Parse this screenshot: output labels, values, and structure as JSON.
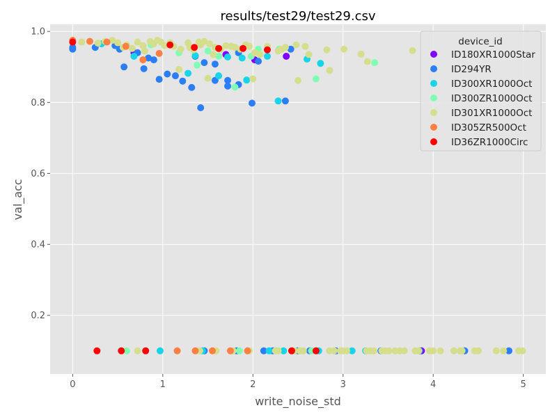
{
  "chart_data": {
    "type": "scatter",
    "title": "results/test29/test29.csv",
    "xlabel": "write_noise_std",
    "ylabel": "val_acc",
    "xlim": [
      -0.25,
      5.25
    ],
    "ylim": [
      0.035,
      1.02
    ],
    "xticks": [
      0,
      1,
      2,
      3,
      4,
      5
    ],
    "yticks": [
      0.2,
      0.4,
      0.6,
      0.8,
      1.0
    ],
    "xtick_labels": [
      "0",
      "1",
      "2",
      "3",
      "4",
      "5"
    ],
    "ytick_labels": [
      "0.2",
      "0.4",
      "0.6",
      "0.8",
      "1.0"
    ],
    "grid": true,
    "style": "ggplot",
    "legend": {
      "title": "device_id",
      "position": "top-right"
    },
    "series": [
      {
        "name": "ID180XR1000Star",
        "color": "#8000ff",
        "points": [
          [
            0.68,
            0.94
          ],
          [
            1.7,
            0.935
          ],
          [
            2.37,
            0.93
          ],
          [
            2.02,
            0.92
          ],
          [
            3.87,
            0.1
          ]
        ]
      },
      {
        "name": "ID294YR",
        "color": "#2c7ef7",
        "points": [
          [
            0.0,
            0.95
          ],
          [
            0.0,
            0.955
          ],
          [
            0.25,
            0.955
          ],
          [
            0.47,
            0.96
          ],
          [
            0.52,
            0.95
          ],
          [
            0.57,
            0.9
          ],
          [
            0.72,
            0.94
          ],
          [
            0.79,
            0.895
          ],
          [
            0.84,
            0.925
          ],
          [
            0.9,
            0.92
          ],
          [
            0.96,
            0.865
          ],
          [
            1.05,
            0.88
          ],
          [
            1.14,
            0.875
          ],
          [
            1.22,
            0.86
          ],
          [
            1.32,
            0.842
          ],
          [
            1.36,
            0.93
          ],
          [
            1.42,
            0.785
          ],
          [
            1.46,
            0.912
          ],
          [
            1.58,
            0.908
          ],
          [
            1.58,
            0.862
          ],
          [
            1.72,
            0.846
          ],
          [
            1.72,
            0.862
          ],
          [
            1.84,
            0.85
          ],
          [
            1.84,
            0.94
          ],
          [
            1.99,
            0.798
          ],
          [
            2.06,
            0.916
          ],
          [
            2.36,
            0.804
          ],
          [
            2.42,
            0.95
          ],
          [
            1.46,
            0.1
          ],
          [
            1.82,
            0.1
          ],
          [
            2.12,
            0.1
          ],
          [
            2.22,
            0.1
          ],
          [
            2.5,
            0.1
          ],
          [
            2.63,
            0.1
          ],
          [
            2.92,
            0.1
          ],
          [
            3.42,
            0.1
          ],
          [
            3.85,
            0.1
          ],
          [
            4.35,
            0.1
          ],
          [
            4.84,
            0.1
          ]
        ]
      },
      {
        "name": "ID300XR1000Oct",
        "color": "#18d4e8",
        "points": [
          [
            0.32,
            0.965
          ],
          [
            0.68,
            0.93
          ],
          [
            1.28,
            0.882
          ],
          [
            1.36,
            0.932
          ],
          [
            1.62,
            0.875
          ],
          [
            1.72,
            0.928
          ],
          [
            1.88,
            0.925
          ],
          [
            1.93,
            0.863
          ],
          [
            2.16,
            0.93
          ],
          [
            2.28,
            0.804
          ],
          [
            2.6,
            0.922
          ],
          [
            2.75,
            0.91
          ],
          [
            0.97,
            0.1
          ],
          [
            1.44,
            0.1
          ],
          [
            2.18,
            0.1
          ],
          [
            2.34,
            0.1
          ],
          [
            2.73,
            0.1
          ],
          [
            3.1,
            0.1
          ],
          [
            3.25,
            0.1
          ]
        ]
      },
      {
        "name": "ID300ZR1000Oct",
        "color": "#80ffb4",
        "points": [
          [
            0.87,
            0.962
          ],
          [
            1.18,
            0.94
          ],
          [
            1.38,
            0.905
          ],
          [
            1.5,
            0.945
          ],
          [
            1.62,
            0.93
          ],
          [
            1.8,
            0.843
          ],
          [
            1.98,
            0.93
          ],
          [
            2.06,
            0.95
          ],
          [
            2.29,
            0.95
          ],
          [
            2.7,
            0.866
          ],
          [
            3.35,
            0.912
          ],
          [
            0.6,
            0.1
          ],
          [
            1.85,
            0.1
          ],
          [
            2.65,
            0.1
          ]
        ]
      },
      {
        "name": "ID301XR1000Oct",
        "color": "#d4de8c",
        "points": [
          [
            0.1,
            0.97
          ],
          [
            0.28,
            0.967
          ],
          [
            0.36,
            0.972
          ],
          [
            0.44,
            0.975
          ],
          [
            0.5,
            0.968
          ],
          [
            0.56,
            0.955
          ],
          [
            0.6,
            0.962
          ],
          [
            0.66,
            0.952
          ],
          [
            0.72,
            0.97
          ],
          [
            0.78,
            0.96
          ],
          [
            0.8,
            0.945
          ],
          [
            0.86,
            0.972
          ],
          [
            0.9,
            0.965
          ],
          [
            0.94,
            0.975
          ],
          [
            0.98,
            0.97
          ],
          [
            1.02,
            0.96
          ],
          [
            1.08,
            0.968
          ],
          [
            1.12,
            0.958
          ],
          [
            1.18,
            0.893
          ],
          [
            1.2,
            0.95
          ],
          [
            1.28,
            0.968
          ],
          [
            1.3,
            0.955
          ],
          [
            1.34,
            0.948
          ],
          [
            1.4,
            0.97
          ],
          [
            1.42,
            0.962
          ],
          [
            1.46,
            0.972
          ],
          [
            1.5,
            0.868
          ],
          [
            1.52,
            0.965
          ],
          [
            1.56,
            0.935
          ],
          [
            1.58,
            0.955
          ],
          [
            1.64,
            0.95
          ],
          [
            1.7,
            0.96
          ],
          [
            1.76,
            0.958
          ],
          [
            1.8,
            0.955
          ],
          [
            1.86,
            0.95
          ],
          [
            1.92,
            0.962
          ],
          [
            1.96,
            0.958
          ],
          [
            2.0,
            0.866
          ],
          [
            2.02,
            0.94
          ],
          [
            2.08,
            0.935
          ],
          [
            2.16,
            0.958
          ],
          [
            2.28,
            0.945
          ],
          [
            2.32,
            0.95
          ],
          [
            2.36,
            0.955
          ],
          [
            2.48,
            0.962
          ],
          [
            2.5,
            0.862
          ],
          [
            2.58,
            0.958
          ],
          [
            2.62,
            0.935
          ],
          [
            2.82,
            0.948
          ],
          [
            2.85,
            0.89
          ],
          [
            3.01,
            0.95
          ],
          [
            3.2,
            0.936
          ],
          [
            3.27,
            0.915
          ],
          [
            3.77,
            0.946
          ],
          [
            0.72,
            0.1
          ],
          [
            1.37,
            0.1
          ],
          [
            1.41,
            0.1
          ],
          [
            1.59,
            0.1
          ],
          [
            1.78,
            0.1
          ],
          [
            1.96,
            0.1
          ],
          [
            2.25,
            0.1
          ],
          [
            2.28,
            0.1
          ],
          [
            2.46,
            0.1
          ],
          [
            2.52,
            0.1
          ],
          [
            2.56,
            0.1
          ],
          [
            2.85,
            0.1
          ],
          [
            2.9,
            0.1
          ],
          [
            2.97,
            0.1
          ],
          [
            3.0,
            0.1
          ],
          [
            3.04,
            0.1
          ],
          [
            3.26,
            0.1
          ],
          [
            3.3,
            0.1
          ],
          [
            3.34,
            0.1
          ],
          [
            3.43,
            0.1
          ],
          [
            3.47,
            0.1
          ],
          [
            3.51,
            0.1
          ],
          [
            3.58,
            0.1
          ],
          [
            3.63,
            0.1
          ],
          [
            3.68,
            0.1
          ],
          [
            3.8,
            0.1
          ],
          [
            3.84,
            0.1
          ],
          [
            3.96,
            0.1
          ],
          [
            4.0,
            0.1
          ],
          [
            4.08,
            0.1
          ],
          [
            4.23,
            0.1
          ],
          [
            4.3,
            0.1
          ],
          [
            4.32,
            0.1
          ],
          [
            4.46,
            0.1
          ],
          [
            4.5,
            0.1
          ],
          [
            4.7,
            0.1
          ],
          [
            4.78,
            0.1
          ],
          [
            4.95,
            0.1
          ],
          [
            4.99,
            0.1
          ]
        ]
      },
      {
        "name": "ID305ZR500Oct",
        "color": "#ff8042",
        "points": [
          [
            0.0,
            0.975
          ],
          [
            0.19,
            0.972
          ],
          [
            0.38,
            0.97
          ],
          [
            0.59,
            0.958
          ],
          [
            0.78,
            0.92
          ],
          [
            0.96,
            0.938
          ],
          [
            1.16,
            0.1
          ],
          [
            1.36,
            0.1
          ],
          [
            1.55,
            0.1
          ],
          [
            1.75,
            0.1
          ],
          [
            1.94,
            0.1
          ]
        ]
      },
      {
        "name": "ID36ZR1000Circ",
        "color": "#ff0000",
        "points": [
          [
            0.0,
            0.97
          ],
          [
            1.08,
            0.962
          ],
          [
            1.35,
            0.955
          ],
          [
            1.62,
            0.952
          ],
          [
            1.89,
            0.952
          ],
          [
            2.16,
            0.948
          ],
          [
            0.27,
            0.1
          ],
          [
            0.54,
            0.1
          ],
          [
            0.81,
            0.1
          ],
          [
            2.43,
            0.1
          ],
          [
            2.7,
            0.1
          ]
        ]
      }
    ]
  }
}
